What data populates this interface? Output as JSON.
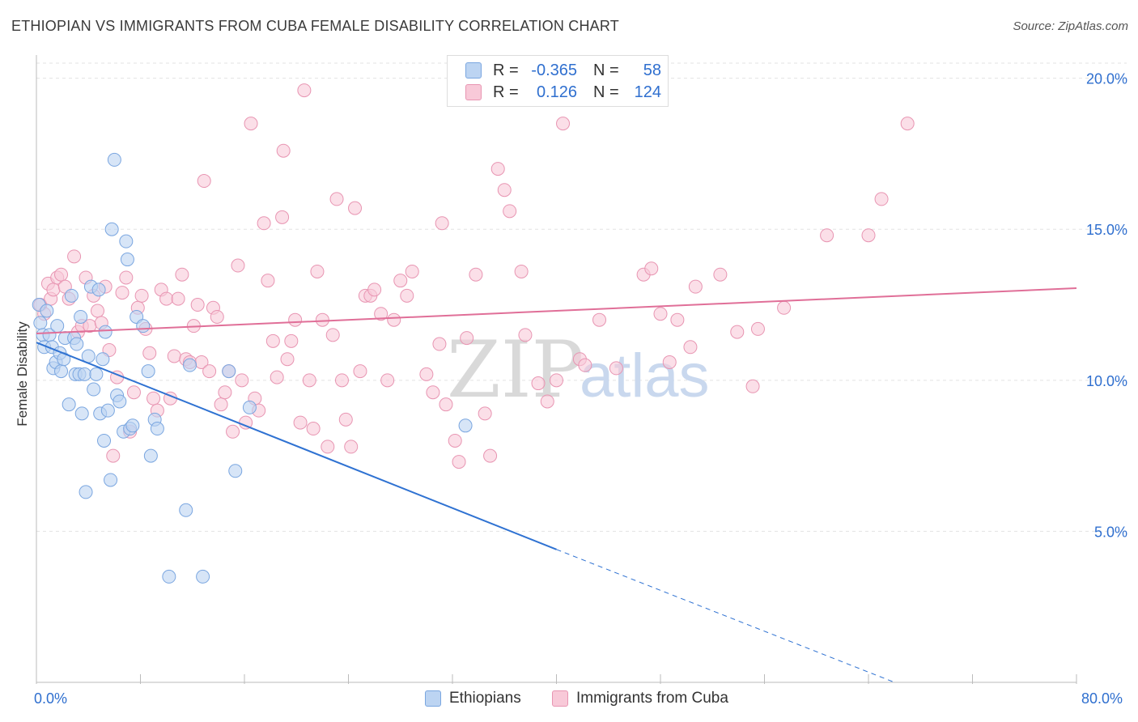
{
  "header": {
    "title": "ETHIOPIAN VS IMMIGRANTS FROM CUBA FEMALE DISABILITY CORRELATION CHART",
    "source": "Source: ZipAtlas.com"
  },
  "legend": {
    "rows": [
      {
        "r_label": "R =",
        "r_value": "-0.365",
        "n_label": "N =",
        "n_value": "58"
      },
      {
        "r_label": "R =",
        "r_value": "0.126",
        "n_label": "N =",
        "n_value": "124"
      }
    ]
  },
  "watermark": {
    "zip": "ZIP",
    "atlas": "atlas"
  },
  "colors": {
    "blue_fill": "#bcd4f2",
    "blue_stroke": "#7aa6e0",
    "blue_line": "#2f72d2",
    "pink_fill": "#f8c9d8",
    "pink_stroke": "#e895b2",
    "pink_line": "#e06f98"
  },
  "chart_data": {
    "type": "scatter",
    "title": "ETHIOPIAN VS IMMIGRANTS FROM CUBA FEMALE DISABILITY CORRELATION CHART",
    "xlabel": "",
    "ylabel": "Female Disability",
    "xlim": [
      0,
      80
    ],
    "ylim": [
      0,
      20.5
    ],
    "x_tick_labels": [
      "0.0%",
      "80.0%"
    ],
    "y_ticks": [
      5,
      10,
      15,
      20
    ],
    "y_tick_labels": [
      "5.0%",
      "10.0%",
      "15.0%",
      "20.0%"
    ],
    "grid": true,
    "legend_position": "top-center",
    "series": [
      {
        "name": "Ethiopians",
        "r": -0.365,
        "n": 58,
        "trend": {
          "x0": 0,
          "y0": 11.25,
          "x1": 40,
          "y1": 4.4,
          "dashed_to_x": 66,
          "dashed_to_y": 0
        },
        "points": [
          [
            0.2,
            12.5
          ],
          [
            0.3,
            11.9
          ],
          [
            0.5,
            11.5
          ],
          [
            0.6,
            11.1
          ],
          [
            0.8,
            12.3
          ],
          [
            1.0,
            11.5
          ],
          [
            1.2,
            11.1
          ],
          [
            1.3,
            10.4
          ],
          [
            1.5,
            10.6
          ],
          [
            1.6,
            11.8
          ],
          [
            1.8,
            10.9
          ],
          [
            1.9,
            10.3
          ],
          [
            2.1,
            10.7
          ],
          [
            2.2,
            11.4
          ],
          [
            2.5,
            9.2
          ],
          [
            2.7,
            12.8
          ],
          [
            2.9,
            11.4
          ],
          [
            3.0,
            10.2
          ],
          [
            3.1,
            11.2
          ],
          [
            3.3,
            10.2
          ],
          [
            3.4,
            12.1
          ],
          [
            3.5,
            8.9
          ],
          [
            3.7,
            10.2
          ],
          [
            3.8,
            6.3
          ],
          [
            4.0,
            10.8
          ],
          [
            4.2,
            13.1
          ],
          [
            4.4,
            9.7
          ],
          [
            4.6,
            10.2
          ],
          [
            4.8,
            13.0
          ],
          [
            4.9,
            8.9
          ],
          [
            5.1,
            10.7
          ],
          [
            5.2,
            8.0
          ],
          [
            5.3,
            11.6
          ],
          [
            5.5,
            9.0
          ],
          [
            5.7,
            6.7
          ],
          [
            5.8,
            15.0
          ],
          [
            6.0,
            17.3
          ],
          [
            6.2,
            9.5
          ],
          [
            6.4,
            9.3
          ],
          [
            6.7,
            8.3
          ],
          [
            6.9,
            14.6
          ],
          [
            7.0,
            14.0
          ],
          [
            7.2,
            8.4
          ],
          [
            7.4,
            8.5
          ],
          [
            7.7,
            12.1
          ],
          [
            8.2,
            11.8
          ],
          [
            8.6,
            10.3
          ],
          [
            8.8,
            7.5
          ],
          [
            9.1,
            8.7
          ],
          [
            9.3,
            8.4
          ],
          [
            10.2,
            3.5
          ],
          [
            11.5,
            5.7
          ],
          [
            11.8,
            10.5
          ],
          [
            12.8,
            3.5
          ],
          [
            14.8,
            10.3
          ],
          [
            15.3,
            7.0
          ],
          [
            16.4,
            9.1
          ],
          [
            33.0,
            8.5
          ]
        ]
      },
      {
        "name": "Immigrants from Cuba",
        "r": 0.126,
        "n": 124,
        "trend": {
          "x0": 0,
          "y0": 11.55,
          "x1": 80,
          "y1": 13.05
        },
        "points": [
          [
            0.3,
            12.5
          ],
          [
            0.6,
            12.2
          ],
          [
            0.9,
            13.2
          ],
          [
            1.1,
            12.7
          ],
          [
            1.3,
            13.0
          ],
          [
            1.6,
            13.4
          ],
          [
            1.9,
            13.5
          ],
          [
            2.2,
            13.1
          ],
          [
            2.5,
            12.7
          ],
          [
            2.9,
            14.1
          ],
          [
            3.2,
            11.6
          ],
          [
            3.5,
            11.8
          ],
          [
            3.8,
            13.4
          ],
          [
            4.1,
            11.8
          ],
          [
            4.4,
            12.8
          ],
          [
            4.7,
            12.3
          ],
          [
            5.0,
            11.9
          ],
          [
            5.3,
            13.1
          ],
          [
            5.6,
            11.0
          ],
          [
            5.9,
            7.5
          ],
          [
            6.2,
            10.1
          ],
          [
            6.6,
            12.9
          ],
          [
            6.9,
            13.4
          ],
          [
            7.2,
            8.3
          ],
          [
            7.5,
            9.6
          ],
          [
            7.8,
            12.4
          ],
          [
            8.1,
            12.8
          ],
          [
            8.4,
            11.7
          ],
          [
            8.7,
            10.9
          ],
          [
            9.0,
            9.4
          ],
          [
            9.3,
            9.0
          ],
          [
            9.6,
            13.0
          ],
          [
            10.0,
            12.7
          ],
          [
            10.3,
            9.4
          ],
          [
            10.6,
            10.8
          ],
          [
            10.9,
            12.7
          ],
          [
            11.2,
            13.5
          ],
          [
            11.5,
            10.7
          ],
          [
            11.8,
            10.6
          ],
          [
            12.1,
            11.8
          ],
          [
            12.4,
            12.5
          ],
          [
            12.7,
            10.6
          ],
          [
            12.9,
            16.6
          ],
          [
            13.3,
            10.3
          ],
          [
            13.6,
            12.4
          ],
          [
            13.9,
            12.1
          ],
          [
            14.2,
            9.2
          ],
          [
            14.5,
            9.6
          ],
          [
            14.8,
            10.3
          ],
          [
            15.1,
            8.3
          ],
          [
            15.5,
            13.8
          ],
          [
            15.8,
            10.0
          ],
          [
            16.1,
            8.6
          ],
          [
            16.5,
            18.5
          ],
          [
            16.8,
            9.4
          ],
          [
            17.1,
            9.0
          ],
          [
            17.5,
            15.2
          ],
          [
            17.8,
            13.3
          ],
          [
            18.2,
            11.3
          ],
          [
            18.5,
            10.1
          ],
          [
            18.9,
            15.4
          ],
          [
            19.0,
            17.6
          ],
          [
            19.3,
            10.7
          ],
          [
            19.6,
            11.3
          ],
          [
            19.9,
            12.0
          ],
          [
            20.3,
            8.6
          ],
          [
            20.6,
            19.6
          ],
          [
            21.0,
            10.0
          ],
          [
            21.3,
            8.4
          ],
          [
            21.6,
            13.6
          ],
          [
            22.0,
            12.0
          ],
          [
            22.4,
            7.8
          ],
          [
            22.8,
            11.5
          ],
          [
            23.1,
            16.0
          ],
          [
            23.5,
            10.0
          ],
          [
            23.8,
            8.7
          ],
          [
            24.2,
            7.8
          ],
          [
            24.5,
            15.7
          ],
          [
            24.9,
            10.3
          ],
          [
            25.3,
            12.8
          ],
          [
            25.7,
            12.8
          ],
          [
            26.0,
            13.0
          ],
          [
            26.5,
            12.2
          ],
          [
            27.0,
            10.0
          ],
          [
            27.5,
            12.0
          ],
          [
            28.0,
            13.3
          ],
          [
            28.5,
            12.8
          ],
          [
            28.9,
            13.6
          ],
          [
            30.0,
            10.2
          ],
          [
            30.5,
            9.6
          ],
          [
            31.0,
            11.2
          ],
          [
            31.2,
            15.2
          ],
          [
            31.5,
            9.2
          ],
          [
            32.2,
            8.0
          ],
          [
            32.5,
            7.3
          ],
          [
            33.1,
            11.4
          ],
          [
            33.8,
            13.5
          ],
          [
            34.5,
            8.9
          ],
          [
            34.9,
            7.5
          ],
          [
            35.5,
            17.0
          ],
          [
            36.0,
            16.3
          ],
          [
            36.4,
            15.6
          ],
          [
            37.3,
            13.6
          ],
          [
            37.6,
            11.5
          ],
          [
            38.6,
            9.9
          ],
          [
            39.3,
            9.3
          ],
          [
            40.0,
            10.0
          ],
          [
            40.5,
            18.5
          ],
          [
            41.8,
            10.7
          ],
          [
            42.2,
            10.5
          ],
          [
            43.3,
            12.0
          ],
          [
            44.6,
            10.4
          ],
          [
            46.7,
            13.5
          ],
          [
            47.3,
            13.7
          ],
          [
            48.0,
            12.2
          ],
          [
            48.7,
            10.6
          ],
          [
            49.3,
            12.0
          ],
          [
            50.3,
            11.1
          ],
          [
            50.7,
            13.1
          ],
          [
            52.6,
            13.5
          ],
          [
            53.9,
            11.6
          ],
          [
            55.1,
            9.8
          ],
          [
            55.5,
            11.7
          ],
          [
            57.5,
            12.4
          ],
          [
            60.8,
            14.8
          ],
          [
            64.0,
            14.8
          ],
          [
            65.0,
            16.0
          ],
          [
            67.0,
            18.5
          ]
        ]
      }
    ]
  },
  "bottom_legend": [
    "Ethiopians",
    "Immigrants from Cuba"
  ]
}
